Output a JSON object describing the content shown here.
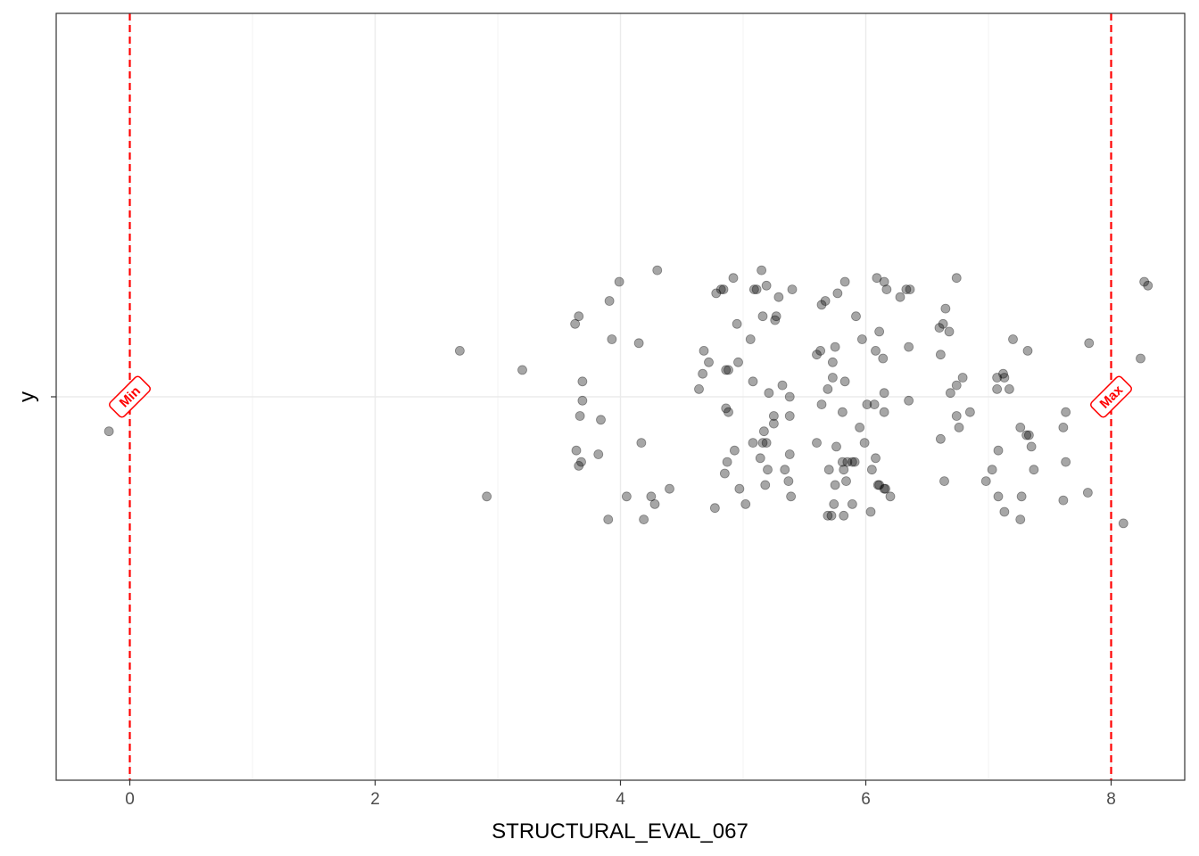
{
  "chart_data": {
    "type": "scatter",
    "xlabel": "STRUCTURAL_EVAL_067",
    "ylabel": "y",
    "xlim": [
      -0.6,
      8.6
    ],
    "ylim": [
      -1.0,
      1.0
    ],
    "x_ticks": [
      0,
      2,
      4,
      6,
      8
    ],
    "x_tick_labels": [
      "0",
      "2",
      "4",
      "6",
      "8"
    ],
    "y_ticks": [
      0
    ],
    "grid": true,
    "legend": "none",
    "point_color": "#000000",
    "point_opacity": 0.35,
    "reference_lines": [
      {
        "label": "Min",
        "x": 0,
        "color": "#ff0000",
        "style": "dashed"
      },
      {
        "label": "Max",
        "x": 8,
        "color": "#ff0000",
        "style": "dashed"
      }
    ],
    "points": [
      {
        "x": -0.17,
        "y": -0.09
      },
      {
        "x": 2.69,
        "y": 0.12
      },
      {
        "x": 2.91,
        "y": -0.26
      },
      {
        "x": 3.2,
        "y": 0.07
      },
      {
        "x": 3.63,
        "y": 0.19
      },
      {
        "x": 3.66,
        "y": 0.21
      },
      {
        "x": 3.69,
        "y": 0.04
      },
      {
        "x": 3.69,
        "y": -0.01
      },
      {
        "x": 3.67,
        "y": -0.05
      },
      {
        "x": 3.84,
        "y": -0.06
      },
      {
        "x": 3.64,
        "y": -0.14
      },
      {
        "x": 3.66,
        "y": -0.18
      },
      {
        "x": 3.68,
        "y": -0.17
      },
      {
        "x": 3.82,
        "y": -0.15
      },
      {
        "x": 3.91,
        "y": 0.25
      },
      {
        "x": 3.93,
        "y": 0.15
      },
      {
        "x": 3.99,
        "y": 0.3
      },
      {
        "x": 4.3,
        "y": 0.33
      },
      {
        "x": 4.15,
        "y": 0.14
      },
      {
        "x": 4.17,
        "y": -0.12
      },
      {
        "x": 4.05,
        "y": -0.26
      },
      {
        "x": 3.9,
        "y": -0.32
      },
      {
        "x": 4.19,
        "y": -0.32
      },
      {
        "x": 4.25,
        "y": -0.26
      },
      {
        "x": 4.28,
        "y": -0.28
      },
      {
        "x": 4.4,
        "y": -0.24
      },
      {
        "x": 4.78,
        "y": 0.27
      },
      {
        "x": 4.82,
        "y": 0.28
      },
      {
        "x": 4.84,
        "y": 0.28
      },
      {
        "x": 4.92,
        "y": 0.31
      },
      {
        "x": 4.95,
        "y": 0.19
      },
      {
        "x": 4.68,
        "y": 0.12
      },
      {
        "x": 4.72,
        "y": 0.09
      },
      {
        "x": 4.67,
        "y": 0.06
      },
      {
        "x": 4.64,
        "y": 0.02
      },
      {
        "x": 4.86,
        "y": 0.07
      },
      {
        "x": 4.88,
        "y": 0.07
      },
      {
        "x": 4.96,
        "y": 0.09
      },
      {
        "x": 4.86,
        "y": -0.03
      },
      {
        "x": 4.88,
        "y": -0.04
      },
      {
        "x": 4.93,
        "y": -0.14
      },
      {
        "x": 4.87,
        "y": -0.17
      },
      {
        "x": 4.85,
        "y": -0.2
      },
      {
        "x": 4.97,
        "y": -0.24
      },
      {
        "x": 4.77,
        "y": -0.29
      },
      {
        "x": 5.02,
        "y": -0.28
      },
      {
        "x": 5.06,
        "y": 0.15
      },
      {
        "x": 5.08,
        "y": 0.04
      },
      {
        "x": 5.09,
        "y": 0.28
      },
      {
        "x": 5.11,
        "y": 0.28
      },
      {
        "x": 5.15,
        "y": 0.33
      },
      {
        "x": 5.19,
        "y": 0.29
      },
      {
        "x": 5.16,
        "y": 0.21
      },
      {
        "x": 5.26,
        "y": 0.2
      },
      {
        "x": 5.27,
        "y": 0.21
      },
      {
        "x": 5.29,
        "y": 0.26
      },
      {
        "x": 5.21,
        "y": 0.01
      },
      {
        "x": 5.32,
        "y": 0.03
      },
      {
        "x": 5.38,
        "y": 0.0
      },
      {
        "x": 5.25,
        "y": -0.05
      },
      {
        "x": 5.25,
        "y": -0.07
      },
      {
        "x": 5.38,
        "y": -0.05
      },
      {
        "x": 5.17,
        "y": -0.09
      },
      {
        "x": 5.19,
        "y": -0.12
      },
      {
        "x": 5.16,
        "y": -0.12
      },
      {
        "x": 5.08,
        "y": -0.12
      },
      {
        "x": 5.14,
        "y": -0.16
      },
      {
        "x": 5.2,
        "y": -0.19
      },
      {
        "x": 5.18,
        "y": -0.23
      },
      {
        "x": 5.34,
        "y": -0.19
      },
      {
        "x": 5.37,
        "y": -0.22
      },
      {
        "x": 5.39,
        "y": -0.26
      },
      {
        "x": 5.38,
        "y": -0.15
      },
      {
        "x": 5.4,
        "y": 0.28
      },
      {
        "x": 5.6,
        "y": 0.11
      },
      {
        "x": 5.63,
        "y": 0.12
      },
      {
        "x": 5.67,
        "y": 0.25
      },
      {
        "x": 5.64,
        "y": 0.24
      },
      {
        "x": 5.73,
        "y": 0.09
      },
      {
        "x": 5.69,
        "y": 0.02
      },
      {
        "x": 5.64,
        "y": -0.02
      },
      {
        "x": 5.75,
        "y": 0.13
      },
      {
        "x": 5.73,
        "y": 0.05
      },
      {
        "x": 5.77,
        "y": 0.27
      },
      {
        "x": 5.83,
        "y": 0.3
      },
      {
        "x": 5.83,
        "y": 0.04
      },
      {
        "x": 5.81,
        "y": -0.04
      },
      {
        "x": 5.6,
        "y": -0.12
      },
      {
        "x": 5.7,
        "y": -0.19
      },
      {
        "x": 5.76,
        "y": -0.13
      },
      {
        "x": 5.81,
        "y": -0.17
      },
      {
        "x": 5.82,
        "y": -0.19
      },
      {
        "x": 5.85,
        "y": -0.17
      },
      {
        "x": 5.89,
        "y": -0.17
      },
      {
        "x": 5.91,
        "y": -0.17
      },
      {
        "x": 5.84,
        "y": -0.22
      },
      {
        "x": 5.75,
        "y": -0.23
      },
      {
        "x": 5.74,
        "y": -0.28
      },
      {
        "x": 5.69,
        "y": -0.31
      },
      {
        "x": 5.72,
        "y": -0.31
      },
      {
        "x": 5.82,
        "y": -0.31
      },
      {
        "x": 5.89,
        "y": -0.28
      },
      {
        "x": 5.92,
        "y": 0.21
      },
      {
        "x": 5.97,
        "y": 0.15
      },
      {
        "x": 5.95,
        "y": -0.08
      },
      {
        "x": 5.99,
        "y": -0.12
      },
      {
        "x": 6.01,
        "y": -0.02
      },
      {
        "x": 6.07,
        "y": -0.02
      },
      {
        "x": 6.05,
        "y": -0.19
      },
      {
        "x": 6.08,
        "y": -0.16
      },
      {
        "x": 6.1,
        "y": -0.23
      },
      {
        "x": 6.11,
        "y": -0.23
      },
      {
        "x": 6.15,
        "y": -0.24
      },
      {
        "x": 6.16,
        "y": -0.24
      },
      {
        "x": 6.2,
        "y": -0.26
      },
      {
        "x": 6.04,
        "y": -0.3
      },
      {
        "x": 6.15,
        "y": -0.04
      },
      {
        "x": 6.15,
        "y": 0.01
      },
      {
        "x": 6.08,
        "y": 0.12
      },
      {
        "x": 6.11,
        "y": 0.17
      },
      {
        "x": 6.14,
        "y": 0.1
      },
      {
        "x": 6.09,
        "y": 0.31
      },
      {
        "x": 6.15,
        "y": 0.3
      },
      {
        "x": 6.17,
        "y": 0.28
      },
      {
        "x": 6.28,
        "y": 0.26
      },
      {
        "x": 6.33,
        "y": 0.28
      },
      {
        "x": 6.36,
        "y": 0.28
      },
      {
        "x": 6.35,
        "y": 0.13
      },
      {
        "x": 6.35,
        "y": -0.01
      },
      {
        "x": 6.6,
        "y": 0.18
      },
      {
        "x": 6.63,
        "y": 0.19
      },
      {
        "x": 6.65,
        "y": 0.23
      },
      {
        "x": 6.68,
        "y": 0.17
      },
      {
        "x": 6.61,
        "y": 0.11
      },
      {
        "x": 6.74,
        "y": 0.31
      },
      {
        "x": 6.74,
        "y": 0.03
      },
      {
        "x": 6.69,
        "y": 0.01
      },
      {
        "x": 6.79,
        "y": 0.05
      },
      {
        "x": 6.61,
        "y": -0.11
      },
      {
        "x": 6.74,
        "y": -0.05
      },
      {
        "x": 6.76,
        "y": -0.08
      },
      {
        "x": 6.85,
        "y": -0.04
      },
      {
        "x": 6.64,
        "y": -0.22
      },
      {
        "x": 6.98,
        "y": -0.22
      },
      {
        "x": 7.07,
        "y": 0.05
      },
      {
        "x": 7.07,
        "y": 0.02
      },
      {
        "x": 7.12,
        "y": 0.06
      },
      {
        "x": 7.13,
        "y": 0.05
      },
      {
        "x": 7.17,
        "y": 0.02
      },
      {
        "x": 7.2,
        "y": 0.15
      },
      {
        "x": 7.32,
        "y": 0.12
      },
      {
        "x": 7.26,
        "y": -0.08
      },
      {
        "x": 7.31,
        "y": -0.1
      },
      {
        "x": 7.33,
        "y": -0.1
      },
      {
        "x": 7.35,
        "y": -0.13
      },
      {
        "x": 7.08,
        "y": -0.14
      },
      {
        "x": 7.03,
        "y": -0.19
      },
      {
        "x": 7.37,
        "y": -0.19
      },
      {
        "x": 7.08,
        "y": -0.26
      },
      {
        "x": 7.27,
        "y": -0.26
      },
      {
        "x": 7.13,
        "y": -0.3
      },
      {
        "x": 7.26,
        "y": -0.32
      },
      {
        "x": 7.61,
        "y": -0.08
      },
      {
        "x": 7.63,
        "y": -0.04
      },
      {
        "x": 7.63,
        "y": -0.17
      },
      {
        "x": 7.61,
        "y": -0.27
      },
      {
        "x": 7.81,
        "y": -0.25
      },
      {
        "x": 7.82,
        "y": 0.14
      },
      {
        "x": 8.1,
        "y": -0.33
      },
      {
        "x": 8.24,
        "y": 0.1
      },
      {
        "x": 8.27,
        "y": 0.3
      },
      {
        "x": 8.3,
        "y": 0.29
      }
    ]
  }
}
